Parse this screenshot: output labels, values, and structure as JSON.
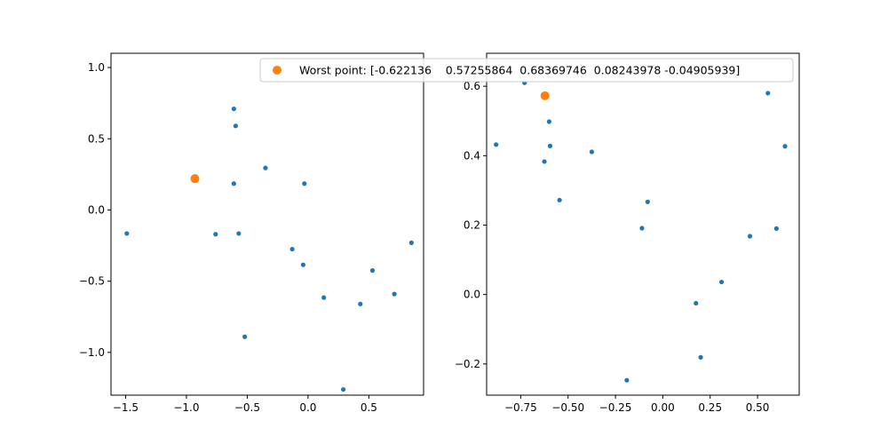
{
  "colors": {
    "series": "#1f77b4",
    "highlight": "#ff7f0e"
  },
  "legend": {
    "label": "Worst point: [-0.622136    0.57255864  0.68369746  0.08243978 -0.04905939]",
    "placement": "upper-right"
  },
  "chart_data": [
    {
      "type": "scatter",
      "title": "",
      "xlabel": "",
      "ylabel": "",
      "xlim": [
        -1.62,
        0.95
      ],
      "ylim": [
        -1.3,
        1.1
      ],
      "grid": false,
      "xticks": [
        -1.5,
        -1.0,
        -0.5,
        0.0,
        0.5
      ],
      "xtick_labels": [
        "−1.5",
        "−1.0",
        "−0.5",
        "0.0",
        "0.5"
      ],
      "yticks": [
        -1.0,
        -0.5,
        0.0,
        0.5,
        1.0
      ],
      "ytick_labels": [
        "−1.0",
        "−0.5",
        "0.0",
        "0.5",
        "1.0"
      ],
      "points": [
        {
          "x": -1.49,
          "y": -0.165
        },
        {
          "x": -0.76,
          "y": -0.17
        },
        {
          "x": -0.61,
          "y": 0.71
        },
        {
          "x": -0.595,
          "y": 0.59
        },
        {
          "x": -0.61,
          "y": 0.185
        },
        {
          "x": -0.57,
          "y": -0.165
        },
        {
          "x": -0.52,
          "y": -0.89
        },
        {
          "x": -0.35,
          "y": 0.295
        },
        {
          "x": -0.13,
          "y": -0.275
        },
        {
          "x": -0.03,
          "y": 0.185
        },
        {
          "x": -0.04,
          "y": -0.385
        },
        {
          "x": 0.13,
          "y": -0.615
        },
        {
          "x": 0.29,
          "y": -1.26
        },
        {
          "x": 0.43,
          "y": -0.66
        },
        {
          "x": 0.53,
          "y": -0.425
        },
        {
          "x": 0.71,
          "y": -0.59
        },
        {
          "x": 0.85,
          "y": -0.23
        }
      ],
      "highlight": {
        "x": -0.93,
        "y": 0.22
      }
    },
    {
      "type": "scatter",
      "title": "",
      "xlabel": "",
      "ylabel": "",
      "xlim": [
        -0.93,
        0.72
      ],
      "ylim": [
        -0.29,
        0.695
      ],
      "grid": false,
      "xticks": [
        -0.75,
        -0.5,
        -0.25,
        0.0,
        0.25,
        0.5
      ],
      "xtick_labels": [
        "−0.75",
        "−0.50",
        "−0.25",
        "0.00",
        "0.25",
        "0.50"
      ],
      "yticks": [
        -0.2,
        0.0,
        0.2,
        0.4,
        0.6
      ],
      "ytick_labels": [
        "−0.2",
        "0.0",
        "0.2",
        "0.4",
        "0.6"
      ],
      "points": [
        {
          "x": -0.88,
          "y": 0.432
        },
        {
          "x": -0.73,
          "y": 0.61
        },
        {
          "x": -0.6,
          "y": 0.498
        },
        {
          "x": -0.595,
          "y": 0.428
        },
        {
          "x": -0.625,
          "y": 0.383
        },
        {
          "x": -0.545,
          "y": 0.272
        },
        {
          "x": -0.375,
          "y": 0.411
        },
        {
          "x": -0.08,
          "y": 0.267
        },
        {
          "x": -0.11,
          "y": 0.191
        },
        {
          "x": -0.19,
          "y": -0.247
        },
        {
          "x": 0.175,
          "y": -0.025
        },
        {
          "x": 0.2,
          "y": -0.181
        },
        {
          "x": 0.31,
          "y": 0.036
        },
        {
          "x": 0.46,
          "y": 0.168
        },
        {
          "x": 0.555,
          "y": 0.58
        },
        {
          "x": 0.6,
          "y": 0.19
        },
        {
          "x": 0.645,
          "y": 0.427
        }
      ],
      "highlight": {
        "x": -0.622,
        "y": 0.5726
      }
    }
  ]
}
